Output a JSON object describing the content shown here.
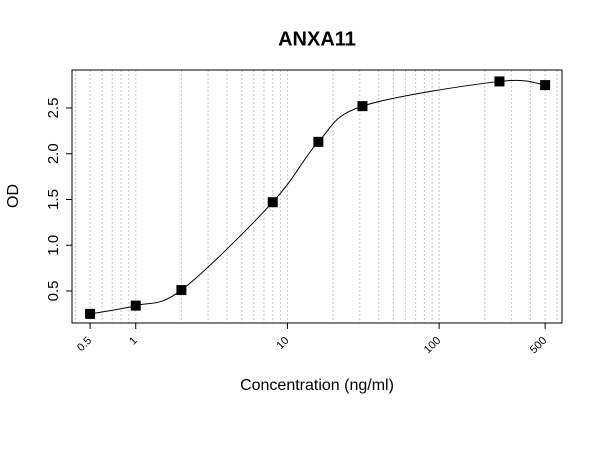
{
  "chart_data": {
    "type": "scatter",
    "title": "ANXA11",
    "xlabel": "Concentration (ng/ml)",
    "ylabel": "OD",
    "x": [
      0.5,
      1,
      2,
      8,
      16,
      31.25,
      250,
      500
    ],
    "series": [
      {
        "color": "#000000",
        "values": [
          0.25,
          0.34,
          0.51,
          1.47,
          2.13,
          2.52,
          2.79,
          2.75
        ]
      }
    ],
    "xscale": "log",
    "xlim": [
      0.38,
      646
    ],
    "ylim": [
      0.15,
      2.915
    ],
    "xticks": [
      0.5,
      1,
      10,
      100,
      500
    ],
    "yticks": [
      0.5,
      {
        "value": 1.0,
        "label": "1.0"
      },
      1.5,
      {
        "value": 2.0,
        "label": "2.0"
      },
      2.5
    ],
    "grid": true,
    "fit_curve": true
  }
}
